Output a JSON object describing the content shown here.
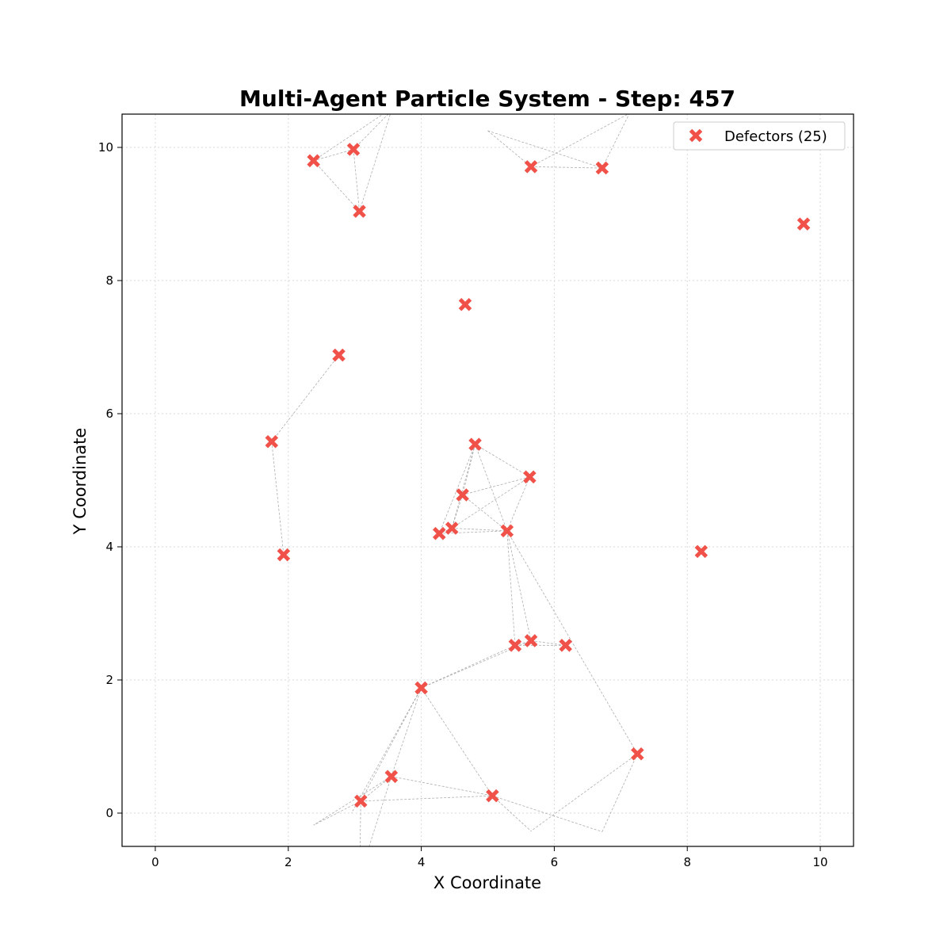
{
  "chart_data": {
    "type": "scatter",
    "title": "Multi-Agent Particle System - Step: 457",
    "xlabel": "X Coordinate",
    "ylabel": "Y Coordinate",
    "xlim": [
      -0.5,
      10.5
    ],
    "ylim": [
      -0.5,
      10.5
    ],
    "xticks": [
      0,
      2,
      4,
      6,
      8,
      10
    ],
    "yticks": [
      0,
      2,
      4,
      6,
      8,
      10
    ],
    "grid": true,
    "legend": {
      "placement": "top-right",
      "label": "Defectors (25)"
    },
    "marker": "X",
    "color": "#f0524a",
    "series": [
      {
        "name": "Defectors (25)",
        "points": [
          [
            2.38,
            9.8
          ],
          [
            2.98,
            9.97
          ],
          [
            3.07,
            9.04
          ],
          [
            5.65,
            9.71
          ],
          [
            6.72,
            9.69
          ],
          [
            9.75,
            8.85
          ],
          [
            4.66,
            7.64
          ],
          [
            2.76,
            6.88
          ],
          [
            1.75,
            5.58
          ],
          [
            1.93,
            3.88
          ],
          [
            4.81,
            5.54
          ],
          [
            5.63,
            5.05
          ],
          [
            4.62,
            4.78
          ],
          [
            4.46,
            4.28
          ],
          [
            4.27,
            4.2
          ],
          [
            5.29,
            4.24
          ],
          [
            8.21,
            3.93
          ],
          [
            5.41,
            2.52
          ],
          [
            5.65,
            2.59
          ],
          [
            6.17,
            2.52
          ],
          [
            4.0,
            1.88
          ],
          [
            7.25,
            0.89
          ],
          [
            3.55,
            0.55
          ],
          [
            3.09,
            0.18
          ],
          [
            5.07,
            0.26
          ]
        ]
      }
    ],
    "links": [
      [
        [
          2.38,
          9.8
        ],
        [
          2.98,
          9.97
        ]
      ],
      [
        [
          2.38,
          9.8
        ],
        [
          3.07,
          9.04
        ]
      ],
      [
        [
          2.98,
          9.97
        ],
        [
          3.07,
          9.04
        ]
      ],
      [
        [
          2.98,
          9.97
        ],
        [
          3.55,
          10.55
        ]
      ],
      [
        [
          2.38,
          9.8
        ],
        [
          3.5,
          10.55
        ]
      ],
      [
        [
          3.07,
          9.04
        ],
        [
          3.55,
          10.55
        ]
      ],
      [
        [
          5.65,
          9.71
        ],
        [
          6.72,
          9.69
        ]
      ],
      [
        [
          5.0,
          10.25
        ],
        [
          6.72,
          9.69
        ]
      ],
      [
        [
          5.0,
          10.25
        ],
        [
          5.65,
          9.71
        ]
      ],
      [
        [
          5.65,
          9.71
        ],
        [
          7.2,
          10.55
        ]
      ],
      [
        [
          6.72,
          9.69
        ],
        [
          7.15,
          10.55
        ]
      ],
      [
        [
          2.76,
          6.88
        ],
        [
          1.75,
          5.58
        ]
      ],
      [
        [
          1.75,
          5.58
        ],
        [
          1.93,
          3.88
        ]
      ],
      [
        [
          4.81,
          5.54
        ],
        [
          5.63,
          5.05
        ]
      ],
      [
        [
          4.81,
          5.54
        ],
        [
          4.62,
          4.78
        ]
      ],
      [
        [
          4.81,
          5.54
        ],
        [
          4.46,
          4.28
        ]
      ],
      [
        [
          4.81,
          5.54
        ],
        [
          5.29,
          4.24
        ]
      ],
      [
        [
          4.81,
          5.54
        ],
        [
          4.27,
          4.2
        ]
      ],
      [
        [
          5.63,
          5.05
        ],
        [
          4.62,
          4.78
        ]
      ],
      [
        [
          5.63,
          5.05
        ],
        [
          4.46,
          4.28
        ]
      ],
      [
        [
          5.63,
          5.05
        ],
        [
          5.29,
          4.24
        ]
      ],
      [
        [
          4.62,
          4.78
        ],
        [
          4.46,
          4.28
        ]
      ],
      [
        [
          4.62,
          4.78
        ],
        [
          5.29,
          4.24
        ]
      ],
      [
        [
          4.46,
          4.28
        ],
        [
          4.27,
          4.2
        ]
      ],
      [
        [
          4.46,
          4.28
        ],
        [
          5.29,
          4.24
        ]
      ],
      [
        [
          4.27,
          4.2
        ],
        [
          5.29,
          4.24
        ]
      ],
      [
        [
          5.29,
          4.24
        ],
        [
          5.41,
          2.52
        ]
      ],
      [
        [
          5.29,
          4.24
        ],
        [
          5.65,
          2.59
        ]
      ],
      [
        [
          5.29,
          4.24
        ],
        [
          7.25,
          0.89
        ]
      ],
      [
        [
          5.41,
          2.52
        ],
        [
          5.65,
          2.59
        ]
      ],
      [
        [
          5.65,
          2.59
        ],
        [
          6.17,
          2.52
        ]
      ],
      [
        [
          5.41,
          2.52
        ],
        [
          6.17,
          2.52
        ]
      ],
      [
        [
          4.0,
          1.88
        ],
        [
          5.41,
          2.52
        ]
      ],
      [
        [
          4.0,
          1.88
        ],
        [
          5.65,
          2.59
        ]
      ],
      [
        [
          4.0,
          1.88
        ],
        [
          5.07,
          0.26
        ]
      ],
      [
        [
          4.0,
          1.88
        ],
        [
          3.55,
          0.55
        ]
      ],
      [
        [
          4.0,
          1.88
        ],
        [
          3.09,
          0.18
        ]
      ],
      [
        [
          4.0,
          1.88
        ],
        [
          2.95,
          0.0
        ]
      ],
      [
        [
          3.55,
          0.55
        ],
        [
          5.07,
          0.26
        ]
      ],
      [
        [
          3.09,
          0.18
        ],
        [
          5.07,
          0.26
        ]
      ],
      [
        [
          3.55,
          0.55
        ],
        [
          3.09,
          0.18
        ]
      ],
      [
        [
          3.55,
          0.55
        ],
        [
          2.38,
          -0.18
        ]
      ],
      [
        [
          3.09,
          0.18
        ],
        [
          2.38,
          -0.18
        ]
      ],
      [
        [
          3.55,
          0.55
        ],
        [
          3.2,
          -0.55
        ]
      ],
      [
        [
          3.09,
          0.18
        ],
        [
          3.08,
          -0.55
        ]
      ],
      [
        [
          5.07,
          0.26
        ],
        [
          6.72,
          -0.28
        ]
      ],
      [
        [
          7.25,
          0.89
        ],
        [
          6.72,
          -0.28
        ]
      ],
      [
        [
          7.25,
          0.89
        ],
        [
          5.65,
          -0.27
        ]
      ],
      [
        [
          5.07,
          0.26
        ],
        [
          5.65,
          -0.27
        ]
      ]
    ]
  }
}
